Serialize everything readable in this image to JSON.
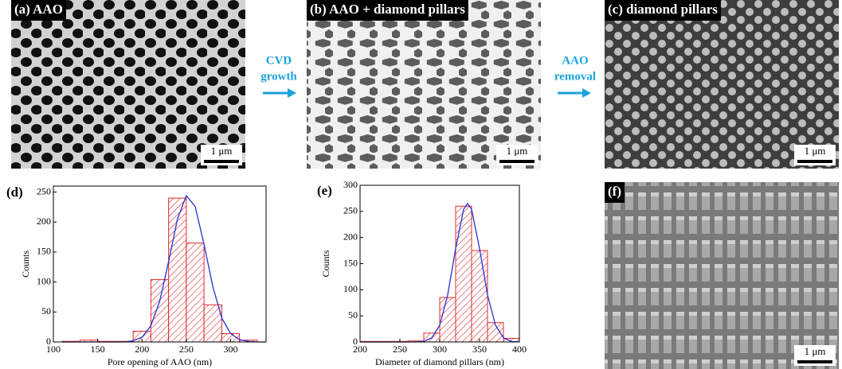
{
  "panels": [
    {
      "label": "(a) AAO",
      "scale_bar": "1 μm"
    },
    {
      "label": "(b) AAO + diamond pillars",
      "scale_bar": "1 μm"
    },
    {
      "label": "(c) diamond pillars",
      "scale_bar": "1 μm"
    },
    {
      "label": "(f)",
      "scale_bar": "1 μm"
    }
  ],
  "arrows": [
    {
      "lines": [
        "CVD",
        "growth"
      ]
    },
    {
      "lines": [
        "AAO",
        "removal"
      ]
    }
  ],
  "chart_data": [
    {
      "type": "histogram",
      "label": "(d)",
      "x_label": "Pore opening of AAO (nm)",
      "y_label": "Counts",
      "bins": [
        110,
        130,
        150,
        170,
        190,
        210,
        230,
        250,
        270,
        290,
        310,
        330
      ],
      "values": [
        1,
        3,
        1,
        1,
        18,
        104,
        240,
        165,
        62,
        14,
        3
      ],
      "color": "#e0282a",
      "fit_color": "#2430d8",
      "fit_x": [
        110,
        150,
        180,
        190,
        200,
        210,
        220,
        230,
        240,
        250,
        260,
        270,
        280,
        290,
        300,
        310,
        320,
        330,
        340
      ],
      "fit_values": [
        0,
        0,
        0,
        2,
        8,
        27,
        68,
        134,
        205,
        244,
        226,
        163,
        92,
        40,
        14,
        4,
        1,
        0,
        0
      ],
      "xlim": [
        100,
        340
      ],
      "xticks": [
        100,
        150,
        200,
        250,
        300
      ],
      "ylim": [
        0,
        260
      ],
      "yticks": [
        0,
        50,
        100,
        150,
        200,
        250
      ]
    },
    {
      "type": "histogram",
      "label": "(e)",
      "x_label": "Diameter of diamond pillars (nm)",
      "y_label": "Counts",
      "bins": [
        200,
        220,
        240,
        260,
        280,
        300,
        320,
        340,
        360,
        380,
        400
      ],
      "values": [
        1,
        1,
        1,
        2,
        17,
        85,
        260,
        175,
        37,
        7
      ],
      "color": "#e0282a",
      "fit_color": "#2430d8",
      "fit_x": [
        200,
        250,
        270,
        280,
        290,
        300,
        310,
        320,
        330,
        335,
        340,
        350,
        360,
        370,
        380,
        390,
        400
      ],
      "fit_values": [
        0,
        0,
        0,
        1,
        8,
        32,
        90,
        179,
        254,
        265,
        254,
        179,
        90,
        32,
        8,
        1,
        0
      ],
      "xlim": [
        200,
        400
      ],
      "xticks": [
        200,
        250,
        300,
        350,
        400
      ],
      "ylim": [
        0,
        300
      ],
      "yticks": [
        0,
        50,
        100,
        150,
        200,
        250,
        300
      ]
    }
  ]
}
